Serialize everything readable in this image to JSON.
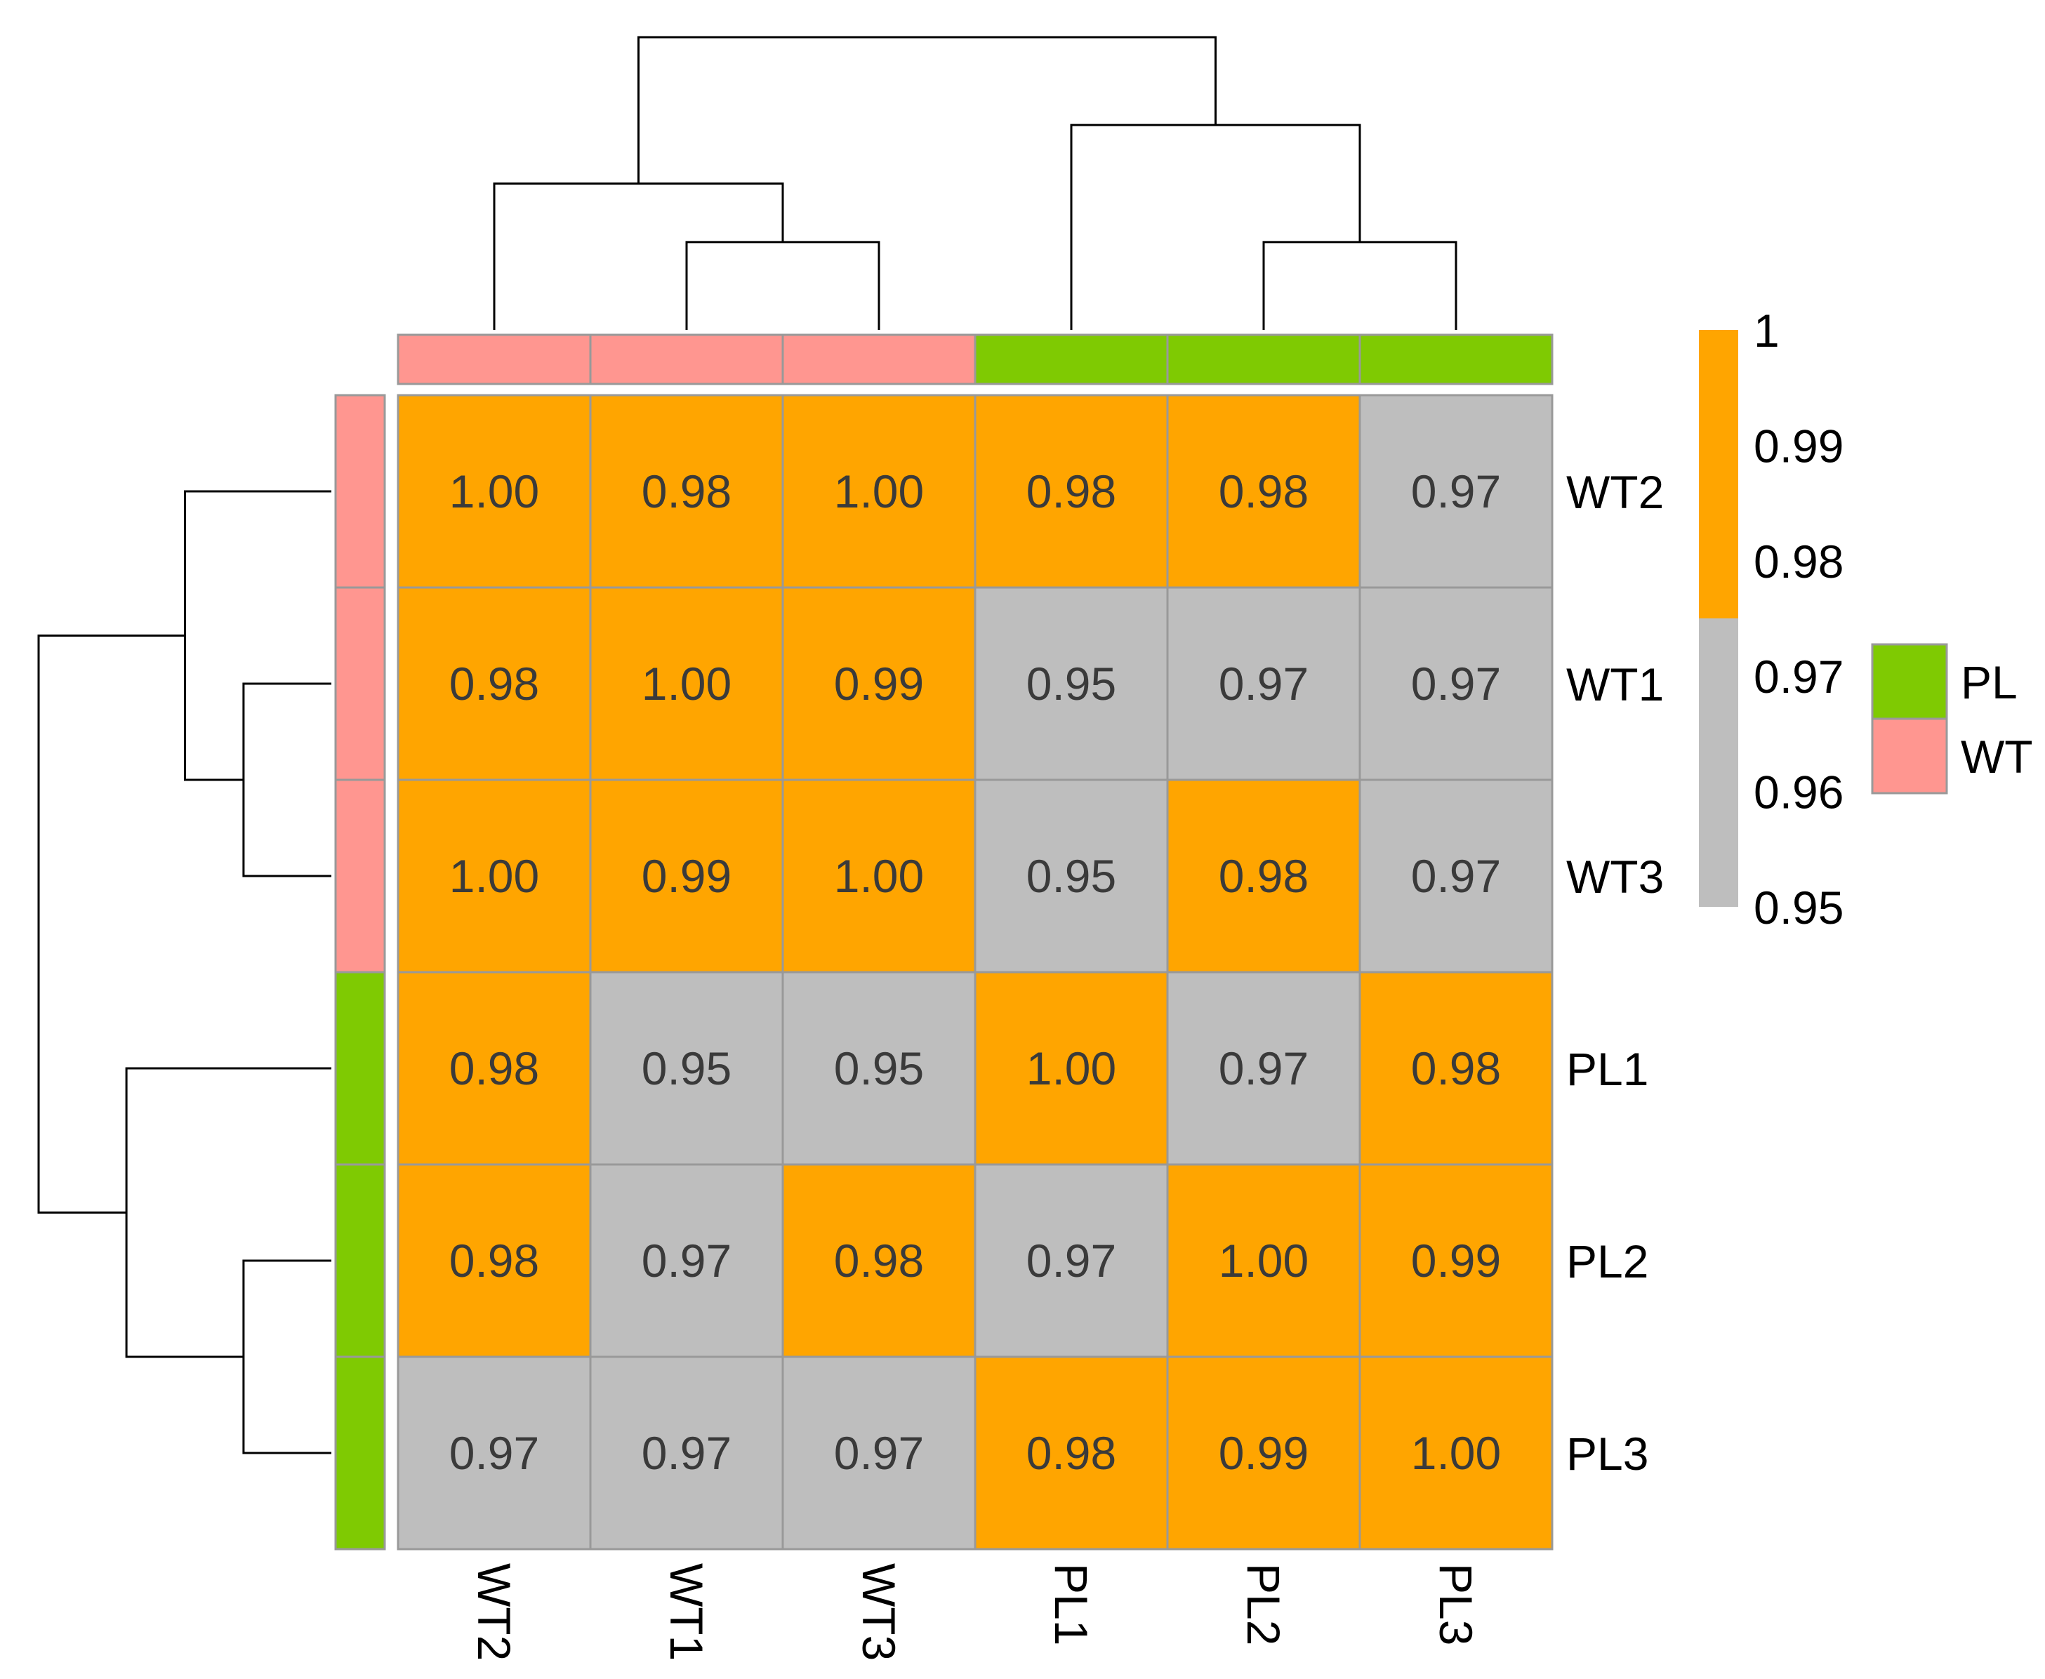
{
  "chart_data": {
    "type": "heatmap",
    "title": "",
    "rows": [
      "WT2",
      "WT1",
      "WT3",
      "PL1",
      "PL2",
      "PL3"
    ],
    "columns": [
      "WT2",
      "WT1",
      "WT3",
      "PL1",
      "PL2",
      "PL3"
    ],
    "values": [
      [
        "1.00",
        "0.98",
        "1.00",
        "0.98",
        "0.98",
        "0.97"
      ],
      [
        "0.98",
        "1.00",
        "0.99",
        "0.95",
        "0.97",
        "0.97"
      ],
      [
        "1.00",
        "0.99",
        "1.00",
        "0.95",
        "0.98",
        "0.97"
      ],
      [
        "0.98",
        "0.95",
        "0.95",
        "1.00",
        "0.97",
        "0.98"
      ],
      [
        "0.98",
        "0.97",
        "0.98",
        "0.97",
        "1.00",
        "0.99"
      ],
      [
        "0.97",
        "0.97",
        "0.97",
        "0.98",
        "0.99",
        "1.00"
      ]
    ],
    "cell_colors": [
      [
        "#FFA500",
        "#FFA500",
        "#FFA500",
        "#FFA500",
        "#FFA500",
        "#BEBEBE"
      ],
      [
        "#FFA500",
        "#FFA500",
        "#FFA500",
        "#BEBEBE",
        "#BEBEBE",
        "#BEBEBE"
      ],
      [
        "#FFA500",
        "#FFA500",
        "#FFA500",
        "#BEBEBE",
        "#FFA500",
        "#BEBEBE"
      ],
      [
        "#FFA500",
        "#BEBEBE",
        "#BEBEBE",
        "#FFA500",
        "#BEBEBE",
        "#FFA500"
      ],
      [
        "#FFA500",
        "#BEBEBE",
        "#FFA500",
        "#BEBEBE",
        "#FFA500",
        "#FFA500"
      ],
      [
        "#BEBEBE",
        "#BEBEBE",
        "#BEBEBE",
        "#FFA500",
        "#FFA500",
        "#FFA500"
      ]
    ],
    "groups": [
      "WT",
      "WT",
      "WT",
      "PL",
      "PL",
      "PL"
    ],
    "group_colors": {
      "PL": "#7FCA02",
      "WT": "#FF9690"
    },
    "group_legend": [
      "PL",
      "WT"
    ],
    "color_scale": {
      "range": [
        0.95,
        1.0
      ],
      "threshold": 0.975,
      "low_color": "#BEBEBE",
      "high_color": "#FFA500",
      "ticks": [
        {
          "label": "1",
          "value": 1.0
        },
        {
          "label": "0.99",
          "value": 0.99
        },
        {
          "label": "0.98",
          "value": 0.98
        },
        {
          "label": "0.97",
          "value": 0.97
        },
        {
          "label": "0.96",
          "value": 0.96
        },
        {
          "label": "0.95",
          "value": 0.95
        }
      ]
    },
    "dendrogram": {
      "leaves": [
        "WT2",
        "WT1",
        "WT3",
        "PL1",
        "PL2",
        "PL3"
      ],
      "merges": [
        {
          "a": 1,
          "b": 2,
          "height": 0.3
        },
        {
          "a": 0,
          "b": [
            1,
            2
          ],
          "height": 0.5
        },
        {
          "a": 4,
          "b": 5,
          "height": 0.3
        },
        {
          "a": 3,
          "b": [
            4,
            5
          ],
          "height": 0.7
        },
        {
          "a": [
            0,
            1,
            2
          ],
          "b": [
            3,
            4,
            5
          ],
          "height": 1.0
        }
      ]
    },
    "grid_color": "#999999",
    "dendrogram_color": "#000000"
  }
}
